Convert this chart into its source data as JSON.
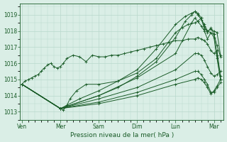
{
  "bg_color": "#daeee6",
  "grid_color": "#b8d8cc",
  "line_color": "#1a5c28",
  "ylim": [
    1012.5,
    1019.7
  ],
  "yticks": [
    1013,
    1014,
    1015,
    1016,
    1017,
    1018,
    1019
  ],
  "xlabel": "Pression niveau de la mer( hPa )",
  "xtick_labels": [
    "Ven",
    "Mer",
    "Sam",
    "Dim",
    "Lun",
    "Mar"
  ],
  "xtick_positions": [
    0,
    1,
    2,
    3,
    4,
    5
  ],
  "xlim": [
    -0.05,
    5.25
  ],
  "series": [
    {
      "x": [
        0.0,
        0.08,
        0.17,
        0.25,
        0.33,
        0.42,
        0.5,
        0.58,
        0.67,
        0.75,
        0.83,
        0.92,
        1.0,
        1.08,
        1.17,
        1.33,
        1.5,
        1.67,
        1.83,
        2.0,
        2.17,
        2.33,
        2.5,
        2.67,
        2.83,
        3.0,
        3.17,
        3.33,
        3.5,
        3.67,
        3.83,
        4.0,
        4.17,
        4.33,
        4.5,
        4.58,
        4.67,
        4.75,
        4.83,
        4.92,
        5.0,
        5.08,
        5.17
      ],
      "y": [
        1014.7,
        1014.9,
        1015.0,
        1015.1,
        1015.2,
        1015.3,
        1015.5,
        1015.7,
        1015.9,
        1016.0,
        1015.8,
        1015.7,
        1015.8,
        1016.0,
        1016.3,
        1016.5,
        1016.4,
        1016.1,
        1016.5,
        1016.4,
        1016.4,
        1016.5,
        1016.5,
        1016.6,
        1016.7,
        1016.8,
        1016.9,
        1017.0,
        1017.1,
        1017.2,
        1017.3,
        1017.4,
        1017.4,
        1017.5,
        1017.5,
        1017.6,
        1017.5,
        1017.4,
        1017.2,
        1016.8,
        1016.6,
        1016.8,
        1015.2
      ]
    },
    {
      "x": [
        0.0,
        1.0,
        1.08,
        1.17,
        1.25,
        1.42,
        1.67,
        2.0,
        2.5,
        3.0,
        3.5,
        4.0,
        4.17,
        4.33,
        4.5,
        4.58,
        4.67,
        4.75,
        4.83,
        5.0,
        5.08,
        5.17
      ],
      "y": [
        1014.7,
        1013.2,
        1013.1,
        1013.4,
        1013.8,
        1014.3,
        1014.7,
        1014.7,
        1014.9,
        1015.4,
        1016.3,
        1017.9,
        1018.2,
        1018.4,
        1018.5,
        1018.6,
        1018.8,
        1018.1,
        1018.0,
        1017.8,
        1017.1,
        1016.4
      ]
    },
    {
      "x": [
        0.0,
        1.0,
        1.5,
        2.0,
        2.5,
        3.0,
        3.5,
        4.0,
        4.25,
        4.42,
        4.5,
        4.58,
        4.67,
        4.75,
        4.83,
        4.92,
        5.0,
        5.08,
        5.17
      ],
      "y": [
        1014.7,
        1013.2,
        1013.8,
        1014.3,
        1014.9,
        1015.6,
        1016.9,
        1018.4,
        1018.9,
        1019.1,
        1019.2,
        1019.0,
        1018.7,
        1018.4,
        1018.0,
        1018.1,
        1018.0,
        1017.9,
        1016.5
      ]
    },
    {
      "x": [
        0.0,
        1.0,
        2.0,
        2.5,
        3.0,
        3.5,
        4.0,
        4.25,
        4.42,
        4.5,
        4.58,
        4.67,
        4.75,
        4.83,
        4.92,
        5.0,
        5.08,
        5.17
      ],
      "y": [
        1014.7,
        1013.2,
        1014.0,
        1014.5,
        1015.2,
        1016.1,
        1017.6,
        1018.6,
        1019.0,
        1019.2,
        1019.1,
        1018.8,
        1018.3,
        1017.9,
        1018.2,
        1017.8,
        1016.5,
        1015.0
      ]
    },
    {
      "x": [
        0.0,
        1.0,
        2.0,
        3.0,
        4.0,
        4.42,
        4.5,
        4.58,
        4.67,
        4.75,
        4.83,
        4.92,
        5.0,
        5.08,
        5.17
      ],
      "y": [
        1014.7,
        1013.2,
        1014.0,
        1015.1,
        1016.6,
        1018.5,
        1018.8,
        1018.6,
        1018.3,
        1018.0,
        1017.5,
        1017.9,
        1017.6,
        1016.3,
        1015.0
      ]
    },
    {
      "x": [
        0.0,
        1.0,
        2.0,
        3.0,
        4.0,
        4.5,
        4.58,
        4.67,
        4.75,
        4.83,
        4.92,
        5.0,
        5.08,
        5.17
      ],
      "y": [
        1014.7,
        1013.2,
        1013.8,
        1014.5,
        1015.6,
        1016.6,
        1016.6,
        1016.5,
        1016.2,
        1015.8,
        1015.4,
        1015.2,
        1015.3,
        1015.5
      ]
    },
    {
      "x": [
        0.0,
        1.0,
        2.0,
        3.0,
        4.0,
        4.5,
        4.58,
        4.67,
        4.75,
        4.83,
        4.92,
        5.0,
        5.08,
        5.17
      ],
      "y": [
        1014.7,
        1013.2,
        1013.6,
        1014.2,
        1015.0,
        1015.5,
        1015.5,
        1015.3,
        1015.0,
        1014.7,
        1014.2,
        1014.2,
        1014.5,
        1014.8
      ]
    },
    {
      "x": [
        0.0,
        1.0,
        2.0,
        3.0,
        4.0,
        4.5,
        4.58,
        4.67,
        4.75,
        4.83,
        4.92,
        5.0,
        5.08,
        5.17
      ],
      "y": [
        1014.7,
        1013.2,
        1013.5,
        1014.0,
        1014.7,
        1015.0,
        1015.1,
        1015.0,
        1014.8,
        1014.5,
        1014.1,
        1014.3,
        1014.6,
        1015.0
      ]
    }
  ]
}
